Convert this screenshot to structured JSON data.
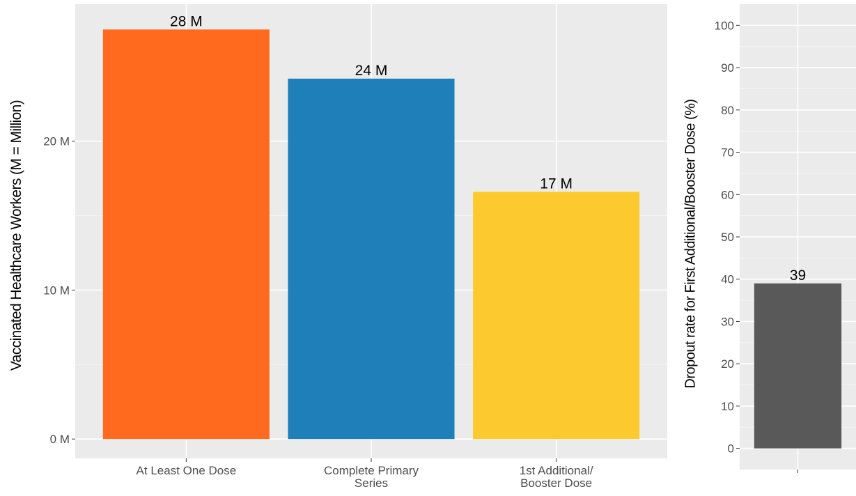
{
  "chart_data": [
    {
      "type": "bar",
      "ylabel": "Vaccinated Healthcare Workers (M = Million)",
      "categories": [
        "At Least One Dose",
        "Complete Primary Series",
        "1st Additional/ Booster Dose"
      ],
      "category_lines": [
        [
          "At Least One Dose"
        ],
        [
          "Complete Primary",
          "Series"
        ],
        [
          "1st Additional/",
          "Booster Dose"
        ]
      ],
      "values": [
        27.5,
        24.2,
        16.6
      ],
      "data_labels": [
        "28 M",
        "24 M",
        "17 M"
      ],
      "bar_colors": [
        "#ff6a1f",
        "#1f7fb8",
        "#fcca2e"
      ],
      "ylim": [
        -1.3,
        29.2
      ],
      "yticks": [
        0,
        10,
        20
      ],
      "ytick_labels": [
        "0 M",
        "10 M",
        "20 M"
      ],
      "grid": true
    },
    {
      "type": "bar",
      "ylabel": "Dropout rate for First Additional/Booster Dose (%)",
      "categories": [
        ""
      ],
      "values": [
        39
      ],
      "data_labels": [
        "39"
      ],
      "bar_colors": [
        "#595959"
      ],
      "ylim": [
        -5,
        105
      ],
      "yticks": [
        0,
        10,
        20,
        30,
        40,
        50,
        60,
        70,
        80,
        90,
        100
      ],
      "ytick_labels": [
        "0",
        "10",
        "20",
        "30",
        "40",
        "50",
        "60",
        "70",
        "80",
        "90",
        "100"
      ],
      "grid": true
    }
  ]
}
